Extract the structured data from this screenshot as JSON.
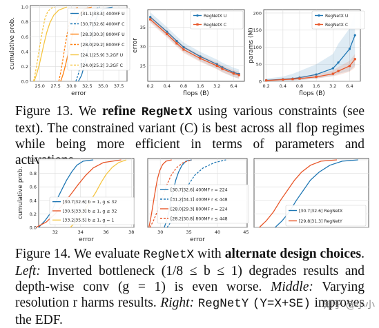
{
  "figure13": {
    "caption_label": "Figure 13.",
    "caption_pre": "We",
    "caption_bold": "refine",
    "caption_mono": "RegNetX",
    "caption_post": "using various constraints (see text). The constrained variant (C) is best across all flop regimes while being more efficient in terms of parameters and activations."
  },
  "figure14": {
    "caption_label": "Figure 14.",
    "caption_pre": "We evaluate",
    "caption_mono": "RegNetX",
    "caption_with": "with",
    "caption_bold": "alternate design choices",
    "left_label": "Left:",
    "left_text": "Inverted bottleneck (",
    "left_formula": "1/8 ≤ b ≤ 1",
    "left_text2": ") degrades results and depth-wise conv (g = 1) is even worse.",
    "middle_label": "Middle:",
    "middle_text": "Varying resolution r harms results.",
    "right_label": "Right:",
    "right_mono": "RegNetY",
    "right_mono2": "(Y=X+SE)",
    "right_text": "improves the EDF."
  },
  "watermark": {
    "text": "知乎 @小小"
  },
  "chart_data": [
    {
      "id": "fig13-edf",
      "type": "line",
      "xlabel": "error",
      "ylabel": "cumulative prob.",
      "xlim": [
        23.5,
        38.8
      ],
      "ylim": [
        0,
        1.02
      ],
      "xticks": [
        25.0,
        27.5,
        30.0,
        32.5,
        35.0,
        37.5
      ],
      "xtick_labels": [
        "25.0",
        "27.5",
        "30.0",
        "32.5",
        "35.0",
        "37.5"
      ],
      "yticks": [
        0.0,
        0.2,
        0.4,
        0.6,
        0.8,
        1.0
      ],
      "ytick_labels": [
        "0.0",
        "0.2",
        "0.4",
        "0.6",
        "0.8",
        "1.0"
      ],
      "legend_position": "top-right",
      "series": [
        {
          "name": "[31.1|33.4] 400MF U",
          "color": "#1f77b4",
          "dash": "solid",
          "x": [
            31.1,
            31.6,
            32.0,
            32.4,
            32.8,
            33.2,
            33.6,
            34.2,
            35.0,
            36.5
          ],
          "y": [
            0.0,
            0.08,
            0.2,
            0.35,
            0.5,
            0.65,
            0.78,
            0.9,
            0.97,
            1.0
          ]
        },
        {
          "name": "[30.7|32.6] 400MF C",
          "color": "#1f77b4",
          "dash": "dashed",
          "x": [
            30.7,
            31.1,
            31.5,
            31.9,
            32.3,
            32.7,
            33.1,
            33.6,
            34.0,
            34.5
          ],
          "y": [
            0.0,
            0.1,
            0.25,
            0.42,
            0.58,
            0.72,
            0.84,
            0.93,
            0.98,
            1.0
          ]
        },
        {
          "name": "[28.3|30.3] 800MF U",
          "color": "#ff7f0e",
          "dash": "solid",
          "x": [
            28.3,
            28.7,
            29.1,
            29.5,
            29.9,
            30.3,
            30.8,
            31.3,
            32.0,
            33.2
          ],
          "y": [
            0.0,
            0.1,
            0.23,
            0.38,
            0.53,
            0.68,
            0.8,
            0.9,
            0.97,
            1.0
          ]
        },
        {
          "name": "[28.0|29.2] 800MF C",
          "color": "#ff7f0e",
          "dash": "dashed",
          "x": [
            28.0,
            28.3,
            28.6,
            28.9,
            29.2,
            29.5,
            29.8,
            30.2,
            30.6,
            31.2
          ],
          "y": [
            0.0,
            0.12,
            0.27,
            0.43,
            0.58,
            0.72,
            0.84,
            0.93,
            0.98,
            1.0
          ]
        },
        {
          "name": "[24.1|25.9] 3.2GF U",
          "color": "#f5c542",
          "dash": "solid",
          "x": [
            24.1,
            24.5,
            24.9,
            25.3,
            25.7,
            26.1,
            26.6,
            27.2,
            28.0,
            29.3
          ],
          "y": [
            0.0,
            0.1,
            0.22,
            0.37,
            0.52,
            0.66,
            0.79,
            0.89,
            0.96,
            1.0
          ]
        },
        {
          "name": "[24.0|25.2] 3.2GF C",
          "color": "#f5c542",
          "dash": "dashed",
          "x": [
            24.0,
            24.3,
            24.6,
            24.9,
            25.2,
            25.5,
            25.8,
            26.2,
            26.7,
            27.4
          ],
          "y": [
            0.0,
            0.12,
            0.27,
            0.43,
            0.58,
            0.72,
            0.84,
            0.93,
            0.98,
            1.0
          ]
        }
      ]
    },
    {
      "id": "fig13-error",
      "type": "line",
      "xlabel": "flops (B)",
      "ylabel": "error",
      "log_x": true,
      "xlim": [
        0.18,
        10.0
      ],
      "ylim": [
        21.0,
        39.5
      ],
      "xticks": [
        0.2,
        0.4,
        0.8,
        1.6,
        3.2,
        6.4
      ],
      "xtick_labels": [
        "0.2",
        "0.4",
        "0.8",
        "1.6",
        "3.2",
        "6.4"
      ],
      "yticks": [
        25,
        30,
        35
      ],
      "ytick_labels": [
        "25",
        "30",
        "35"
      ],
      "legend_position": "top-right",
      "series": [
        {
          "name": "RegNetX U",
          "color": "#1f77b4",
          "marker": "circle",
          "band": 1.2,
          "x": [
            0.2,
            0.4,
            0.6,
            0.8,
            1.6,
            3.2,
            4.0,
            6.4,
            8.0
          ],
          "y": [
            37.6,
            33.8,
            31.4,
            29.8,
            27.4,
            25.4,
            24.6,
            23.3,
            22.9
          ]
        },
        {
          "name": "RegNetX C",
          "color": "#e8572a",
          "marker": "square",
          "band": 0.9,
          "x": [
            0.2,
            0.4,
            0.6,
            0.8,
            1.6,
            3.2,
            4.0,
            6.4,
            8.0
          ],
          "y": [
            37.0,
            33.2,
            30.8,
            29.2,
            26.9,
            25.0,
            24.2,
            23.0,
            22.6
          ]
        }
      ]
    },
    {
      "id": "fig13-params",
      "type": "line",
      "xlabel": "flops (B)",
      "ylabel": "params (M)",
      "log_x": true,
      "xlim": [
        0.18,
        10.0
      ],
      "ylim": [
        0,
        210
      ],
      "xticks": [
        0.2,
        0.4,
        0.8,
        1.6,
        3.2,
        6.4
      ],
      "xtick_labels": [
        "0.2",
        "0.4",
        "0.8",
        "1.6",
        "3.2",
        "6.4"
      ],
      "yticks": [
        0,
        50,
        100,
        150,
        200
      ],
      "ytick_labels": [
        "0",
        "50",
        "100",
        "150",
        "200"
      ],
      "legend_position": "top-right",
      "series": [
        {
          "name": "RegNetX U",
          "color": "#1f77b4",
          "marker": "circle",
          "band_lo": [
            0,
            1,
            2,
            3,
            8,
            16,
            22,
            30,
            45
          ],
          "band_hi": [
            8,
            14,
            22,
            30,
            50,
            80,
            110,
            155,
            200
          ],
          "x": [
            0.2,
            0.4,
            0.6,
            0.8,
            1.6,
            3.2,
            4.0,
            6.4,
            8.0
          ],
          "y": [
            3,
            6,
            8,
            11,
            20,
            38,
            55,
            95,
            135
          ]
        },
        {
          "name": "RegNetX C",
          "color": "#e8572a",
          "marker": "square",
          "band_lo": [
            1,
            2,
            3,
            4,
            8,
            15,
            18,
            28,
            40
          ],
          "band_hi": [
            4,
            7,
            10,
            13,
            20,
            32,
            42,
            60,
            80
          ],
          "x": [
            0.2,
            0.4,
            0.6,
            0.8,
            1.6,
            3.2,
            4.0,
            6.4,
            8.0
          ],
          "y": [
            2.5,
            5,
            6.5,
            8,
            13,
            22,
            30,
            45,
            65
          ]
        }
      ]
    },
    {
      "id": "fig14-left",
      "type": "line",
      "xlabel": "error",
      "ylabel": "cumulative prob.",
      "xlim": [
        30.7,
        38.2
      ],
      "ylim": [
        0,
        1.02
      ],
      "xticks": [
        32,
        34,
        36,
        38
      ],
      "xtick_labels": [
        "32",
        "34",
        "36",
        "38"
      ],
      "yticks": [
        0.0,
        0.2,
        0.4,
        0.6,
        0.8,
        1.0
      ],
      "ytick_labels": [
        "0.0",
        "0.2",
        "0.4",
        "0.6",
        "0.8",
        "1.0"
      ],
      "legend_position": "bottom-center",
      "series": [
        {
          "name": "[30.7|32.6] b = 1, g ≤ 32",
          "color": "#1f77b4",
          "dash": "solid",
          "x": [
            30.7,
            31.2,
            31.7,
            32.1,
            32.5,
            32.9,
            33.3,
            33.7,
            34.2,
            35.0
          ],
          "y": [
            0.0,
            0.1,
            0.23,
            0.4,
            0.55,
            0.7,
            0.82,
            0.92,
            0.98,
            1.0
          ]
        },
        {
          "name": "[30.5|33.3] b ≤ 1, g ≤ 32",
          "color": "#e8572a",
          "dash": "solid",
          "x": [
            30.5,
            31.3,
            32.0,
            32.6,
            33.2,
            33.8,
            34.4,
            35.0,
            35.8,
            37.2
          ],
          "y": [
            0.0,
            0.08,
            0.2,
            0.34,
            0.48,
            0.63,
            0.77,
            0.88,
            0.96,
            1.0
          ]
        },
        {
          "name": "[33.2|35.5] b ≤ 1, g = 1",
          "color": "#f5c542",
          "dash": "solid",
          "x": [
            33.2,
            33.7,
            34.2,
            34.7,
            35.2,
            35.6,
            36.0,
            36.5,
            37.0,
            37.6
          ],
          "y": [
            0.0,
            0.1,
            0.22,
            0.37,
            0.52,
            0.66,
            0.78,
            0.89,
            0.96,
            1.0
          ]
        }
      ]
    },
    {
      "id": "fig14-middle",
      "type": "line",
      "xlabel": "error",
      "ylabel": "",
      "xlim": [
        27.8,
        45.2
      ],
      "ylim": [
        0,
        1.02
      ],
      "xticks": [
        30,
        35,
        40,
        45
      ],
      "xtick_labels": [
        "30",
        "35",
        "40",
        "45"
      ],
      "yticks": [
        0.0,
        0.2,
        0.4,
        0.6,
        0.8,
        1.0
      ],
      "legend_position": "bottom-right",
      "series": [
        {
          "name": "[30.7|32.6] 400MF r = 224",
          "color": "#1f77b4",
          "dash": "solid",
          "x": [
            30.7,
            31.1,
            31.5,
            31.9,
            32.3,
            32.7,
            33.2,
            33.8,
            34.5,
            35.5
          ],
          "y": [
            0.0,
            0.1,
            0.23,
            0.4,
            0.55,
            0.7,
            0.82,
            0.92,
            0.98,
            1.0
          ]
        },
        {
          "name": "[31.2|34.1] 400MF r ≤ 448",
          "color": "#1f77b4",
          "dash": "dashed",
          "x": [
            31.2,
            32.0,
            32.8,
            33.5,
            34.2,
            35.0,
            36.0,
            37.5,
            39.5,
            41.5
          ],
          "y": [
            0.0,
            0.1,
            0.22,
            0.36,
            0.5,
            0.64,
            0.77,
            0.88,
            0.96,
            1.0
          ]
        },
        {
          "name": "[28.0|29.3] 800MF r = 224",
          "color": "#e8572a",
          "dash": "solid",
          "x": [
            28.0,
            28.3,
            28.6,
            28.9,
            29.2,
            29.5,
            29.9,
            30.4,
            31.0,
            32.0
          ],
          "y": [
            0.0,
            0.12,
            0.27,
            0.43,
            0.58,
            0.72,
            0.84,
            0.93,
            0.98,
            1.0
          ]
        },
        {
          "name": "[28.2|30.8] 800MF r ≤ 448",
          "color": "#e8572a",
          "dash": "dashed",
          "x": [
            28.2,
            28.8,
            29.4,
            30.0,
            30.6,
            31.2,
            31.9,
            32.8,
            34.0,
            35.5
          ],
          "y": [
            0.0,
            0.1,
            0.22,
            0.36,
            0.5,
            0.64,
            0.77,
            0.88,
            0.96,
            1.0
          ]
        }
      ]
    },
    {
      "id": "fig14-right",
      "type": "line",
      "xlabel": "",
      "ylabel": "",
      "xlim": [
        29.5,
        36.0
      ],
      "ylim": [
        0,
        1.02
      ],
      "yticks": [
        0.0,
        0.2,
        0.4,
        0.6,
        0.8,
        1.0
      ],
      "legend_position": "bottom-right",
      "series": [
        {
          "name": "[30.7|32.6] RegNetX",
          "color": "#1f77b4",
          "dash": "solid",
          "x": [
            30.7,
            31.1,
            31.5,
            31.9,
            32.3,
            32.7,
            33.2,
            33.8,
            34.5,
            35.4
          ],
          "y": [
            0.0,
            0.1,
            0.23,
            0.4,
            0.55,
            0.7,
            0.82,
            0.92,
            0.98,
            1.0
          ]
        },
        {
          "name": "[29.8|31.3] RegNetY",
          "color": "#e8572a",
          "dash": "solid",
          "x": [
            29.8,
            30.2,
            30.6,
            31.0,
            31.4,
            31.8,
            32.2,
            32.7,
            33.3,
            34.2
          ],
          "y": [
            0.0,
            0.1,
            0.23,
            0.4,
            0.55,
            0.7,
            0.82,
            0.92,
            0.98,
            1.0
          ]
        }
      ]
    }
  ]
}
